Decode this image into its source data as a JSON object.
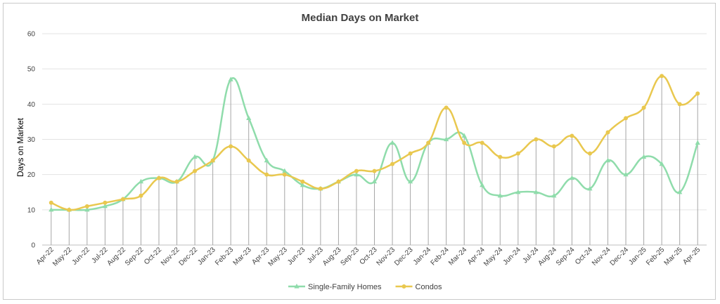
{
  "chart_data": {
    "type": "line",
    "title": "Median Days on Market",
    "ylabel": "Days on Market",
    "xlabel": "",
    "ylim": [
      0,
      60
    ],
    "yticks": [
      0,
      10,
      20,
      30,
      40,
      50,
      60
    ],
    "grid": true,
    "legend_position": "bottom",
    "categories": [
      "Apr-22",
      "May-22",
      "Jun-22",
      "Jul-22",
      "Aug-22",
      "Sep-22",
      "Oct-22",
      "Nov-22",
      "Dec-22",
      "Jan-23",
      "Feb-23",
      "Mar-23",
      "Apr-23",
      "May-23",
      "Jun-23",
      "Jul-23",
      "Aug-23",
      "Sep-23",
      "Oct-23",
      "Nov-23",
      "Dec-23",
      "Jan-24",
      "Feb-24",
      "Mar-24",
      "Apr-24",
      "May-24",
      "Jun-24",
      "Jul-24",
      "Aug-24",
      "Sep-24",
      "Oct-24",
      "Nov-24",
      "Dec-24",
      "Jan-25",
      "Feb-25",
      "Mar-25",
      "Apr-25"
    ],
    "series": [
      {
        "name": "Single-Family Homes",
        "color": "#8fdcab",
        "marker": "triangle",
        "values": [
          10,
          10,
          10,
          11,
          13,
          18,
          19,
          18,
          25,
          24,
          47,
          36,
          24,
          21,
          17,
          16,
          18,
          20,
          18,
          29,
          18,
          29,
          30,
          31,
          17,
          14,
          15,
          15,
          14,
          19,
          16,
          24,
          20,
          25,
          23,
          15,
          29
        ]
      },
      {
        "name": "Condos",
        "color": "#e9c84f",
        "marker": "circle",
        "values": [
          12,
          10,
          11,
          12,
          13,
          14,
          19,
          18,
          21,
          24,
          28,
          24,
          20,
          20,
          18,
          16,
          18,
          21,
          21,
          23,
          26,
          29,
          39,
          29,
          29,
          25,
          26,
          30,
          28,
          31,
          26,
          32,
          36,
          39,
          48,
          40,
          43
        ]
      }
    ]
  }
}
